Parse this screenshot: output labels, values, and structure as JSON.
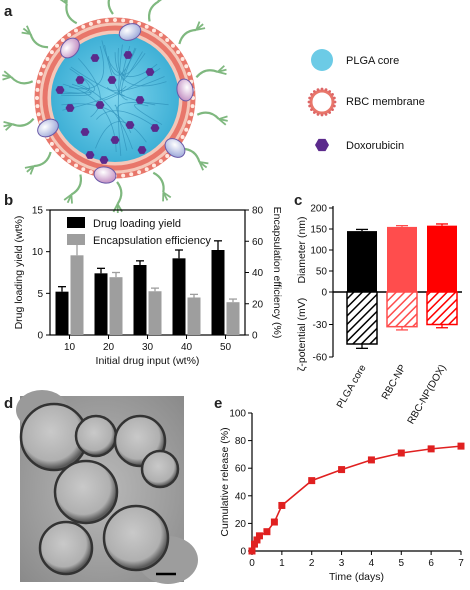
{
  "panels": {
    "a": {
      "label": "a",
      "legend": [
        {
          "text": "PLGA core",
          "icon": "plga-core-icon",
          "color": "#6ccbe6"
        },
        {
          "text": "RBC membrane",
          "icon": "rbc-membrane-icon",
          "color": "#e8766a"
        },
        {
          "text": "Doxorubicin",
          "icon": "doxorubicin-hexagon-icon",
          "color": "#5b2a8c"
        }
      ]
    },
    "b": {
      "label": "b"
    },
    "c": {
      "label": "c"
    },
    "d": {
      "label": "d"
    },
    "e": {
      "label": "e"
    }
  },
  "chart_data": [
    {
      "panel": "b",
      "type": "bar",
      "categories": [
        "10",
        "20",
        "30",
        "40",
        "50"
      ],
      "xlabel": "Initial drug input (wt%)",
      "ylabel": "Drug loading yield (wt%)",
      "y2label": "Encapsulation efficiency (%)",
      "ylim": [
        0,
        15
      ],
      "yticks": [
        "0",
        "5",
        "10",
        "15"
      ],
      "y2lim": [
        0,
        80
      ],
      "y2ticks": [
        "0",
        "20",
        "40",
        "60",
        "80"
      ],
      "legend_position": "top",
      "series": [
        {
          "name": "Drug loading yield",
          "axis": "left",
          "color": "#000000",
          "values": [
            5.2,
            7.4,
            8.4,
            9.2,
            10.2
          ],
          "errors": [
            0.6,
            0.6,
            0.5,
            1.0,
            1.1
          ]
        },
        {
          "name": "Encapsulation efficiency",
          "axis": "right",
          "color": "#9e9e9e",
          "values": [
            51,
            37,
            28,
            24,
            21
          ],
          "errors": [
            7,
            3,
            2,
            2,
            2
          ]
        }
      ]
    },
    {
      "panel": "c",
      "type": "bar",
      "categories": [
        "PLGA core",
        "RBC-NP",
        "RBC-NP(DOX)"
      ],
      "ylabel_top": "Diameter (nm)",
      "ylabel_bottom": "ζ-potential (mV)",
      "ylim": [
        -60,
        200
      ],
      "yticks": [
        "-60",
        "-30",
        "0",
        "50",
        "100",
        "150",
        "200"
      ],
      "series": [
        {
          "name": "Diameter (nm)",
          "values": [
            145,
            155,
            158
          ],
          "errors": [
            4,
            3,
            4
          ],
          "colors": [
            "#000000",
            "#ff4d4d",
            "#ff0000"
          ]
        },
        {
          "name": "ζ-potential (mV)",
          "values": [
            -48,
            -32,
            -30
          ],
          "errors": [
            4,
            3,
            3
          ],
          "colors": [
            "#000000",
            "#ff4d4d",
            "#ff0000"
          ],
          "pattern": "hatched"
        }
      ]
    },
    {
      "panel": "e",
      "type": "line",
      "xlabel": "Time (days)",
      "ylabel": "Cumulative release (%)",
      "xlim": [
        0,
        7
      ],
      "xticks": [
        "0",
        "1",
        "2",
        "3",
        "4",
        "5",
        "6",
        "7"
      ],
      "ylim": [
        0,
        100
      ],
      "yticks": [
        "0",
        "20",
        "40",
        "60",
        "80",
        "100"
      ],
      "color": "#e02020",
      "series": [
        {
          "x": [
            0,
            0.0833,
            0.1667,
            0.25,
            0.5,
            0.75,
            1,
            2,
            3,
            4,
            5,
            6,
            7
          ],
          "y": [
            0,
            5,
            8,
            11,
            14,
            21,
            33,
            51,
            59,
            66,
            71,
            74,
            76
          ]
        }
      ]
    }
  ]
}
